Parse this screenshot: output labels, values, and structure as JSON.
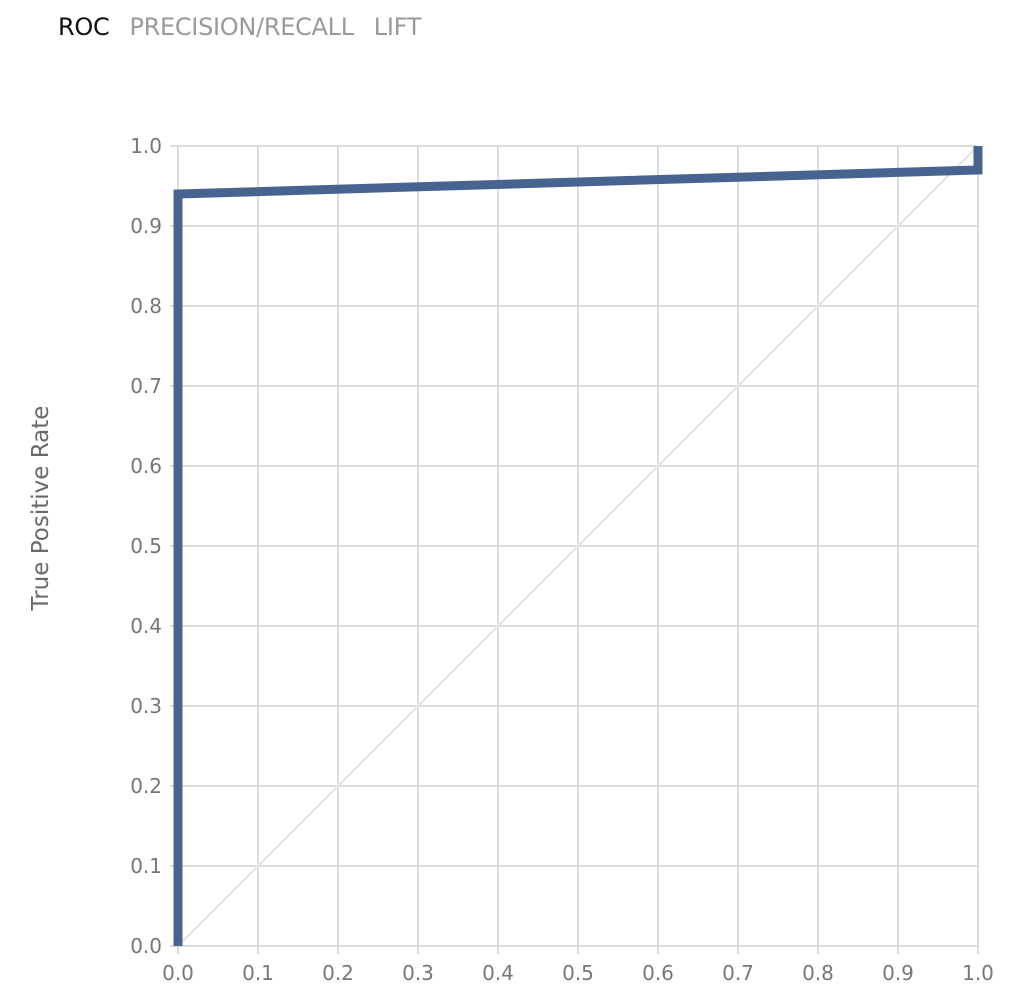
{
  "tabs": [
    {
      "label": "ROC",
      "active": true
    },
    {
      "label": "PRECISION/RECALL",
      "active": false
    },
    {
      "label": "LIFT",
      "active": false
    }
  ],
  "chart_data": {
    "type": "line",
    "title": "",
    "xlabel": "",
    "ylabel": "True Positive Rate",
    "xlim": [
      0,
      1
    ],
    "ylim": [
      0,
      1
    ],
    "grid": true,
    "x_ticks": [
      "0.0",
      "0.1",
      "0.2",
      "0.3",
      "0.4",
      "0.5",
      "0.6",
      "0.7",
      "0.8",
      "0.9",
      "1.0"
    ],
    "y_ticks": [
      "0.0",
      "0.1",
      "0.2",
      "0.3",
      "0.4",
      "0.5",
      "0.6",
      "0.7",
      "0.8",
      "0.9",
      "1.0"
    ],
    "series": [
      {
        "color": "#47638f",
        "x": [
          0.0,
          0.0,
          1.0,
          1.0
        ],
        "y": [
          0.0,
          0.94,
          0.97,
          1.0
        ]
      },
      {
        "color": "#e8e8e8",
        "x": [
          0.0,
          1.0
        ],
        "y": [
          0.0,
          1.0
        ]
      }
    ],
    "colors": {
      "grid": "#d2d2d2",
      "tick_text": "#777777"
    }
  }
}
